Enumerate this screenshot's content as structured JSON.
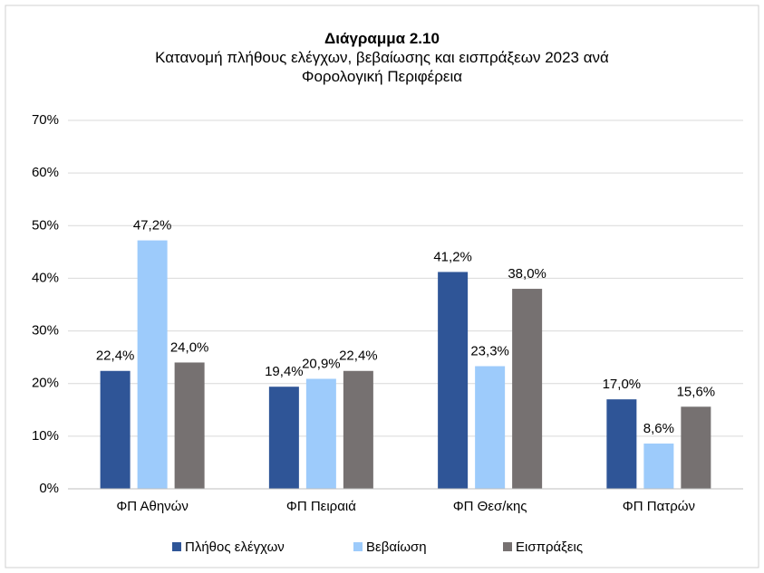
{
  "chart_data": {
    "type": "bar",
    "title": "Διάγραμμα 2.10",
    "subtitle": "Κατανομή πλήθους ελέγχων, βεβαίωσης και εισπράξεων 2023 ανά Φορολογική Περιφέρεια",
    "categories": [
      "ΦΠ Αθηνών",
      "ΦΠ Πειραιά",
      "ΦΠ Θεσ/κης",
      "ΦΠ Πατρών"
    ],
    "series": [
      {
        "name": "Πλήθος ελέγχων",
        "color": "#2f5597",
        "values": [
          22.4,
          19.4,
          41.2,
          17.0
        ],
        "value_labels": [
          "22,4%",
          "19,4%",
          "41,2%",
          "17,0%"
        ]
      },
      {
        "name": "Βεβαίωση",
        "color": "#9dcbfb",
        "values": [
          47.2,
          20.9,
          23.3,
          8.6
        ],
        "value_labels": [
          "47,2%",
          "20,9%",
          "23,3%",
          "8,6%"
        ]
      },
      {
        "name": "Εισπράξεις",
        "color": "#767171",
        "values": [
          24.0,
          22.4,
          38.0,
          15.6
        ],
        "value_labels": [
          "24,0%",
          "22,4%",
          "38,0%",
          "15,6%"
        ]
      }
    ],
    "ylim": [
      0,
      70
    ],
    "yticks": [
      {
        "value": 0,
        "label": "0%"
      },
      {
        "value": 10,
        "label": "10%"
      },
      {
        "value": 20,
        "label": "20%"
      },
      {
        "value": 30,
        "label": "30%"
      },
      {
        "value": 40,
        "label": "40%"
      },
      {
        "value": 50,
        "label": "50%"
      },
      {
        "value": 60,
        "label": "60%"
      },
      {
        "value": 70,
        "label": "70%"
      }
    ],
    "grid": true,
    "legend": "bottom"
  }
}
